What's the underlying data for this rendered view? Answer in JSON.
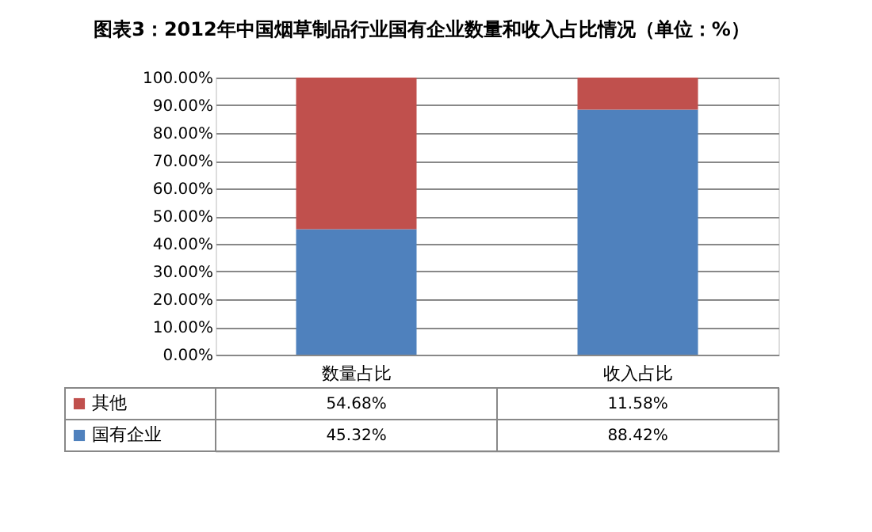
{
  "chart_data": {
    "type": "bar",
    "title": "图表3：2012年中国烟草制品行业国有企业数量和收入占比情况（单位：%）",
    "categories": [
      "数量占比",
      "收入占比"
    ],
    "stacked": true,
    "series": [
      {
        "name": "国有企业",
        "color": "#4f81bd",
        "values": [
          45.32,
          88.42
        ],
        "value_labels": [
          "45.32%",
          "88.42%"
        ]
      },
      {
        "name": "其他",
        "color": "#c0504d",
        "values": [
          54.68,
          11.58
        ],
        "value_labels": [
          "54.68%",
          "11.58%"
        ]
      }
    ],
    "ylim": [
      0,
      100
    ],
    "yticks": [
      {
        "value": 0,
        "label": "0.00%"
      },
      {
        "value": 10,
        "label": "10.00%"
      },
      {
        "value": 20,
        "label": "20.00%"
      },
      {
        "value": 30,
        "label": "30.00%"
      },
      {
        "value": 40,
        "label": "40.00%"
      },
      {
        "value": 50,
        "label": "50.00%"
      },
      {
        "value": 60,
        "label": "60.00%"
      },
      {
        "value": 70,
        "label": "70.00%"
      },
      {
        "value": 80,
        "label": "80.00%"
      },
      {
        "value": 90,
        "label": "90.00%"
      },
      {
        "value": 100,
        "label": "100.00%"
      }
    ],
    "grid": "y",
    "legend": "bottom"
  }
}
